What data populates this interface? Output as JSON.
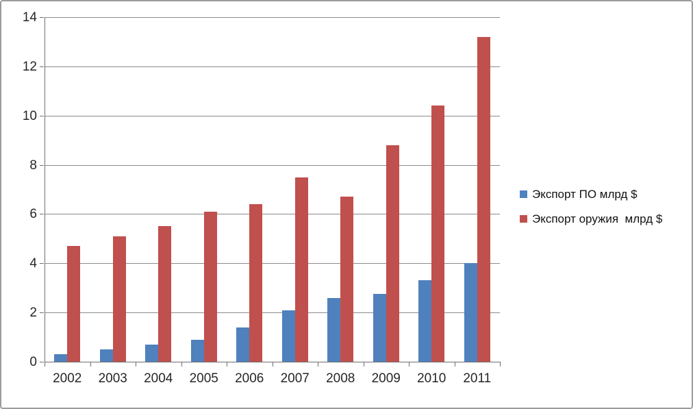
{
  "chart_data": {
    "type": "bar",
    "categories": [
      "2002",
      "2003",
      "2004",
      "2005",
      "2006",
      "2007",
      "2008",
      "2009",
      "2010",
      "2011"
    ],
    "series": [
      {
        "id": "software-export",
        "name": "Экспорт ПО млрд $",
        "color": "#4F81BD",
        "values": [
          0.3,
          0.5,
          0.7,
          0.9,
          1.4,
          2.1,
          2.6,
          2.75,
          3.3,
          4.0
        ]
      },
      {
        "id": "arms-export",
        "name": "Экспорт оружия  млрд $",
        "color": "#C0504D",
        "values": [
          4.7,
          5.1,
          5.5,
          6.1,
          6.4,
          7.5,
          6.7,
          8.8,
          10.4,
          13.2
        ]
      }
    ],
    "xlabel": "",
    "ylabel": "",
    "ylim": [
      0,
      14
    ],
    "yticks": [
      "0",
      "2",
      "4",
      "6",
      "8",
      "10",
      "12",
      "14"
    ],
    "grid": true,
    "legend_position": "right",
    "colors": {
      "gridline": "#8a8a8a",
      "axis": "#6e6e6e",
      "text": "#262626",
      "frame_border": "#9b9b9b",
      "background": "#ffffff"
    }
  }
}
